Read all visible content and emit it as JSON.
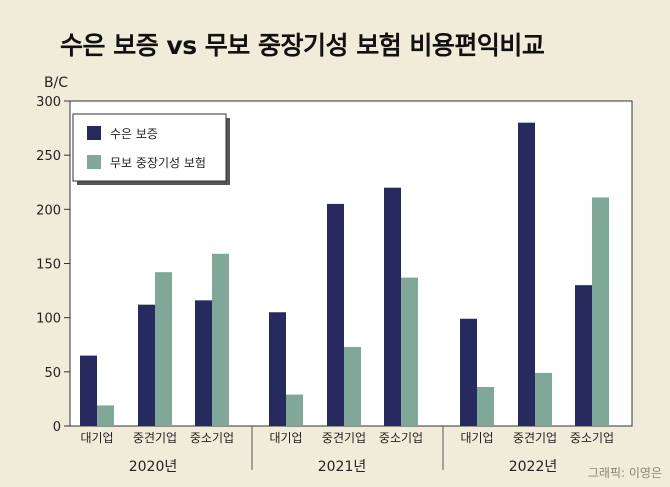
{
  "header": {
    "title": "수은 보증 vs 무보 중장기성 보험 비용편익비교"
  },
  "credit": "그래픽: 이영은",
  "chart_data": {
    "type": "bar",
    "title": "수은 보증 vs 무보 중장기성 보험 비용편익비교",
    "ylabel": "B/C",
    "xlabel": "",
    "ylim": [
      0,
      300
    ],
    "yticks": [
      0,
      50,
      100,
      150,
      200,
      250,
      300
    ],
    "grid": false,
    "legend_position": "top-left",
    "groups": [
      {
        "label": "2020년",
        "categories": [
          "대기업",
          "중견기업",
          "중소기업"
        ]
      },
      {
        "label": "2021년",
        "categories": [
          "대기업",
          "중견기업",
          "중소기업"
        ]
      },
      {
        "label": "2022년",
        "categories": [
          "대기업",
          "중견기업",
          "중소기업"
        ]
      }
    ],
    "series": [
      {
        "name": "수은 보증",
        "color": "#272a5e",
        "values": [
          65,
          112,
          116,
          105,
          205,
          220,
          99,
          280,
          130
        ]
      },
      {
        "name": "무보 중장기성 보험",
        "color": "#7fa898",
        "values": [
          19,
          142,
          159,
          29,
          73,
          137,
          36,
          49,
          211
        ]
      }
    ]
  }
}
